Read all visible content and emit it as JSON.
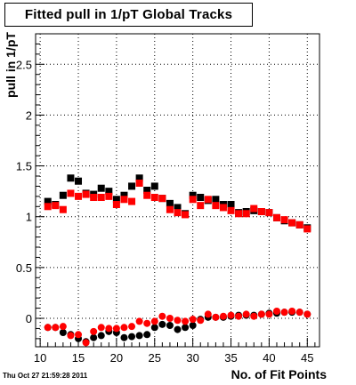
{
  "chart_data": {
    "type": "scatter",
    "title": "Fitted pull in 1/pT  Global Tracks",
    "xlabel": "No. of Fit Points",
    "ylabel": "pull in 1/pT",
    "timestamp": "Thu Oct 27 21:59:28 2011",
    "xlim": [
      9.4,
      46.6
    ],
    "ylim": [
      -0.28,
      2.8
    ],
    "x_ticks": [
      10,
      15,
      20,
      25,
      30,
      35,
      40,
      45
    ],
    "y_ticks": [
      0,
      0.5,
      1,
      1.5,
      2,
      2.5
    ],
    "y_tick_labels": [
      "0",
      "0.5",
      "1",
      "1.5",
      "2",
      "2.5"
    ],
    "grid": true,
    "series": [
      {
        "color": "#000000",
        "marker": "square",
        "x": [
          11,
          12,
          13,
          14,
          15,
          16,
          17,
          18,
          19,
          20,
          21,
          22,
          23,
          24,
          25,
          26,
          27,
          28,
          29,
          30,
          31,
          32,
          33,
          34,
          35,
          36,
          37,
          38,
          39,
          40,
          41,
          42,
          43,
          44,
          45
        ],
        "y": [
          1.15,
          1.12,
          1.21,
          1.38,
          1.35,
          1.23,
          1.22,
          1.28,
          1.25,
          1.17,
          1.21,
          1.3,
          1.38,
          1.26,
          1.3,
          1.18,
          1.13,
          1.09,
          1.03,
          1.21,
          1.19,
          1.16,
          1.17,
          1.12,
          1.12,
          1.04,
          1.05,
          1.06,
          1.05,
          1.04,
          0.99,
          0.96,
          0.94,
          0.92,
          0.89
        ]
      },
      {
        "color": "#ff0000",
        "marker": "square",
        "x": [
          11,
          12,
          13,
          14,
          15,
          16,
          17,
          18,
          19,
          20,
          21,
          22,
          23,
          24,
          25,
          26,
          27,
          28,
          29,
          30,
          31,
          32,
          33,
          34,
          35,
          36,
          37,
          38,
          39,
          40,
          41,
          42,
          43,
          44,
          45
        ],
        "y": [
          1.1,
          1.11,
          1.07,
          1.23,
          1.2,
          1.22,
          1.19,
          1.19,
          1.2,
          1.12,
          1.17,
          1.15,
          1.33,
          1.21,
          1.19,
          1.18,
          1.07,
          1.04,
          1.02,
          1.17,
          1.11,
          1.17,
          1.11,
          1.09,
          1.06,
          1.03,
          1.03,
          1.08,
          1.05,
          1.04,
          0.99,
          0.97,
          0.94,
          0.92,
          0.88
        ]
      },
      {
        "color": "#000000",
        "marker": "circle",
        "x": [
          11,
          12,
          13,
          14,
          15,
          16,
          17,
          18,
          19,
          20,
          21,
          22,
          23,
          24,
          25,
          26,
          27,
          28,
          29,
          30,
          31,
          32,
          33,
          34,
          35,
          36,
          37,
          38,
          39,
          40,
          41,
          42,
          43,
          44,
          45
        ],
        "y": [
          -0.09,
          -0.09,
          -0.14,
          -0.16,
          -0.2,
          -0.23,
          -0.19,
          -0.17,
          -0.13,
          -0.14,
          -0.19,
          -0.18,
          -0.17,
          -0.16,
          -0.09,
          -0.06,
          -0.07,
          -0.11,
          -0.09,
          -0.07,
          -0.01,
          0.01,
          0.01,
          0.01,
          0.02,
          0.03,
          0.03,
          0.03,
          0.04,
          0.05,
          0.05,
          0.06,
          0.06,
          0.06,
          0.04
        ]
      },
      {
        "color": "#ff0000",
        "marker": "circle",
        "x": [
          11,
          12,
          13,
          14,
          15,
          16,
          17,
          18,
          19,
          20,
          21,
          22,
          23,
          24,
          25,
          26,
          27,
          28,
          29,
          30,
          31,
          32,
          33,
          34,
          35,
          36,
          37,
          38,
          39,
          40,
          41,
          42,
          43,
          44,
          45
        ],
        "y": [
          -0.09,
          -0.09,
          -0.08,
          -0.17,
          -0.16,
          -0.24,
          -0.13,
          -0.09,
          -0.1,
          -0.1,
          -0.09,
          -0.08,
          -0.03,
          -0.05,
          -0.03,
          0.02,
          0.0,
          -0.02,
          -0.03,
          -0.01,
          -0.02,
          0.04,
          0.01,
          0.02,
          0.03,
          0.02,
          0.04,
          0.02,
          0.04,
          0.04,
          0.07,
          0.06,
          0.07,
          0.06,
          0.04
        ]
      }
    ]
  }
}
